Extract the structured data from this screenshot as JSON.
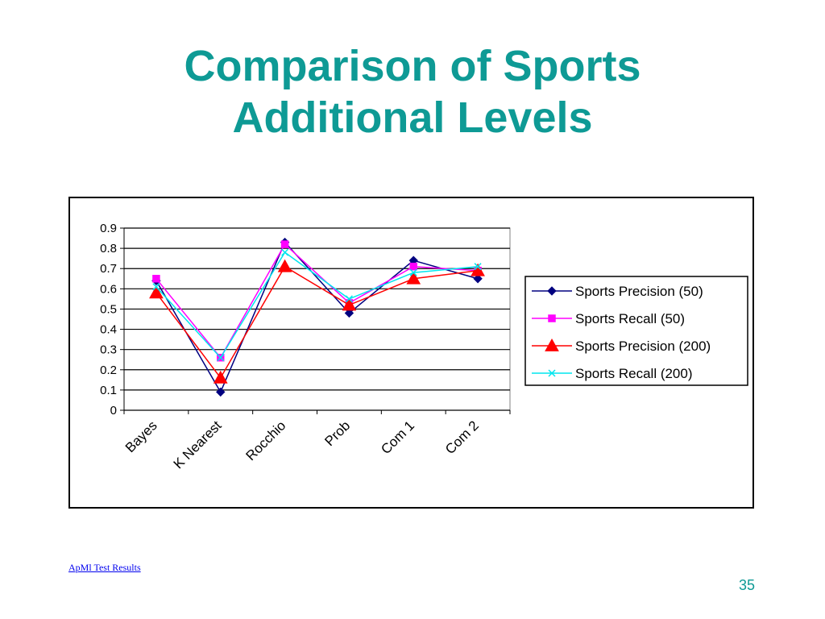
{
  "slide": {
    "title_line1": "Comparison of Sports",
    "title_line2": "Additional Levels",
    "footer_link": "ApMl Test Results",
    "page_number": "35"
  },
  "colors": {
    "title": "#0e9a95",
    "link": "#0000ee"
  },
  "chart_data": {
    "type": "line",
    "categories": [
      "Bayes",
      "K Nearest",
      "Rocchio",
      "Prob",
      "Com 1",
      "Com 2"
    ],
    "ylim": [
      0,
      0.9
    ],
    "yticks": [
      "0",
      "0.1",
      "0.2",
      "0.3",
      "0.4",
      "0.5",
      "0.6",
      "0.7",
      "0.8",
      "0.9"
    ],
    "grid": true,
    "legend_position": "right",
    "series": [
      {
        "name": "Sports Precision (50)",
        "values": [
          0.64,
          0.09,
          0.83,
          0.48,
          0.74,
          0.65
        ],
        "color": "#000080",
        "marker": "diamond"
      },
      {
        "name": "Sports Recall (50)",
        "values": [
          0.65,
          0.26,
          0.82,
          0.53,
          0.71,
          0.69
        ],
        "color": "#ff00ff",
        "marker": "square"
      },
      {
        "name": "Sports Precision (200)",
        "values": [
          0.58,
          0.16,
          0.71,
          0.52,
          0.65,
          0.69
        ],
        "color": "#ff0000",
        "marker": "triangle"
      },
      {
        "name": "Sports Recall (200)",
        "values": [
          0.61,
          0.26,
          0.78,
          0.55,
          0.68,
          0.71
        ],
        "color": "#00e5ee",
        "marker": "x"
      }
    ]
  }
}
